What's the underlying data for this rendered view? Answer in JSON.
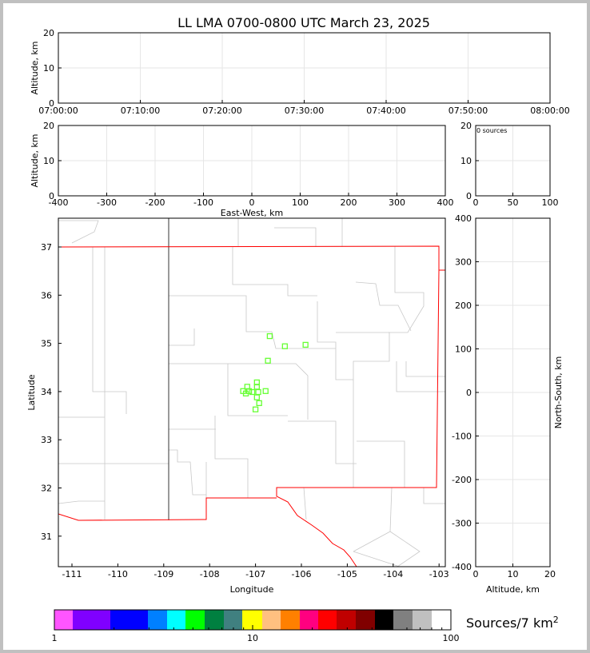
{
  "title": "LL LMA 0700-0800 UTC March 23, 2025",
  "colors": {
    "points": "#66ff33",
    "border_red": "#ff0000",
    "grid": "#e6e6e6",
    "boundary": "#c8c8c8"
  },
  "chart_data": [
    {
      "type": "scatter",
      "panel": "time-altitude",
      "ylabel": "Altitude, km",
      "ylim": [
        0,
        20
      ],
      "yticks": [
        "0",
        "10",
        "20"
      ],
      "xlim": [
        "07:00:00",
        "08:00:00"
      ],
      "xticks": [
        "07:00:00",
        "07:10:00",
        "07:20:00",
        "07:30:00",
        "07:40:00",
        "07:50:00",
        "08:00:00"
      ],
      "grid": true,
      "points": []
    },
    {
      "type": "scatter",
      "panel": "east-west-altitude",
      "ylabel": "Altitude, km",
      "xlabel": "East-West, km",
      "xlim": [
        -400,
        400
      ],
      "ylim": [
        0,
        20
      ],
      "xticks": [
        "-400",
        "-300",
        "-200",
        "-100",
        "0",
        "100",
        "200",
        "300",
        "400"
      ],
      "yticks": [
        "0",
        "10",
        "20"
      ],
      "grid": true,
      "points": []
    },
    {
      "type": "bar",
      "panel": "altitude-histogram",
      "annotation": "0 sources",
      "xlim": [
        0,
        100
      ],
      "ylim": [
        0,
        20
      ],
      "xticks": [
        "0",
        "50",
        "100"
      ],
      "yticks": [
        "0",
        "10",
        "20"
      ],
      "grid": true,
      "values": []
    },
    {
      "type": "scatter",
      "panel": "plan-view",
      "xlabel": "Longitude",
      "ylabel": "Latitude",
      "xlim": [
        -111.3,
        -102.9
      ],
      "ylim": [
        30.4,
        37.6
      ],
      "xticks": [
        "-111",
        "-110",
        "-109",
        "-108",
        "-107",
        "-106",
        "-105",
        "-104",
        "-103"
      ],
      "yticks": [
        "31",
        "32",
        "33",
        "34",
        "35",
        "36",
        "37"
      ],
      "points": [
        {
          "lon": -106.69,
          "lat": 35.15
        },
        {
          "lon": -106.36,
          "lat": 34.94
        },
        {
          "lon": -105.91,
          "lat": 34.97
        },
        {
          "lon": -106.73,
          "lat": 34.64
        },
        {
          "lon": -106.97,
          "lat": 34.19
        },
        {
          "lon": -107.18,
          "lat": 34.1
        },
        {
          "lon": -106.97,
          "lat": 34.1
        },
        {
          "lon": -107.27,
          "lat": 34.01
        },
        {
          "lon": -107.14,
          "lat": 34.01
        },
        {
          "lon": -107.07,
          "lat": 33.99
        },
        {
          "lon": -106.94,
          "lat": 33.99
        },
        {
          "lon": -106.78,
          "lat": 34.01
        },
        {
          "lon": -107.21,
          "lat": 33.96
        },
        {
          "lon": -106.97,
          "lat": 33.88
        },
        {
          "lon": -106.92,
          "lat": 33.76
        },
        {
          "lon": -107.0,
          "lat": 33.63
        }
      ]
    },
    {
      "type": "scatter",
      "panel": "altitude-north-south",
      "xlabel": "Altitude, km",
      "ylabel": "North-South, km",
      "xlim": [
        0,
        20
      ],
      "ylim": [
        -400,
        400
      ],
      "xticks": [
        "0",
        "10",
        "20"
      ],
      "yticks": [
        "-400",
        "-300",
        "-200",
        "-100",
        "0",
        "100",
        "200",
        "300",
        "400"
      ],
      "grid": true,
      "points": []
    }
  ],
  "colorbar": {
    "label": "Sources/7 km",
    "label_sup": "2",
    "ticks": [
      "1",
      "10",
      "100"
    ],
    "colors": [
      "#ff55ff",
      "#8000ff",
      "#0000ff",
      "#0080ff",
      "#00ffff",
      "#00ff00",
      "#008040",
      "#408080",
      "#ffff00",
      "#ffc080",
      "#ff8000",
      "#ff0080",
      "#ff0000",
      "#c00000",
      "#800000",
      "#000000",
      "#808080",
      "#c0c0c0",
      "#ffffff"
    ]
  }
}
